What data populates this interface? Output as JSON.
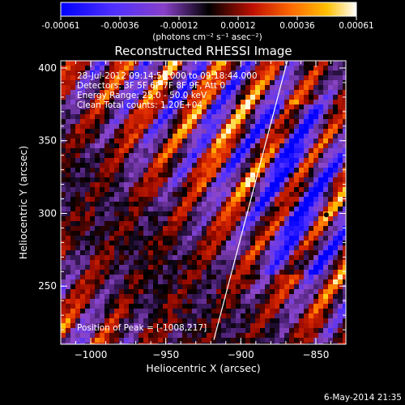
{
  "colorbar": {
    "ticks": [
      "-0.00061",
      "-0.00036",
      "-0.00012",
      "0.00012",
      "0.00036",
      "0.00061"
    ],
    "unit_label": "(photons cm⁻² s⁻¹ asec⁻²)",
    "range": [
      -0.00061,
      0.00061
    ],
    "scheme": "blue-purple-black-red-orange-yellow-white"
  },
  "chart_data": {
    "type": "heatmap",
    "title": "Reconstructed RHESSI Image",
    "xlabel": "Heliocentric X (arcsec)",
    "ylabel": "Heliocentric Y (arcsec)",
    "xlim": [
      -1020,
      -830
    ],
    "ylim": [
      210,
      405
    ],
    "x_ticks": [
      -1000,
      -950,
      -900,
      -850
    ],
    "y_ticks": [
      250,
      300,
      350,
      400
    ],
    "x_tick_labels": [
      "−1000",
      "−950",
      "−900",
      "−850"
    ],
    "y_tick_labels": [
      "250",
      "300",
      "350",
      "400"
    ],
    "pattern": "diagonal fringes of alternating positive/negative flux running upper-left to lower-right",
    "limb_line": [
      [
        -918,
        213
      ],
      [
        -869,
        405
      ]
    ],
    "markers": [
      [
        -867,
        326
      ],
      [
        -843,
        299
      ]
    ],
    "annotations": {
      "time": "28-Jul-2012 09:14:50.000 to 09:18:44.000",
      "detectors": "Detectors: 3F 5F 6F 7F 8F 9F, Att 0",
      "energy": "Energy Range: 25.0 - 50.0 keV",
      "clean": "Clean    Total counts: 1.20E+04",
      "peak": "Position of Peak = [-1008,217]"
    }
  },
  "timestamp": "6-May-2014 21:35",
  "colors": {
    "background": "#000000",
    "text": "#ffffff",
    "limb": "#ffffff",
    "marker": "#000000"
  }
}
